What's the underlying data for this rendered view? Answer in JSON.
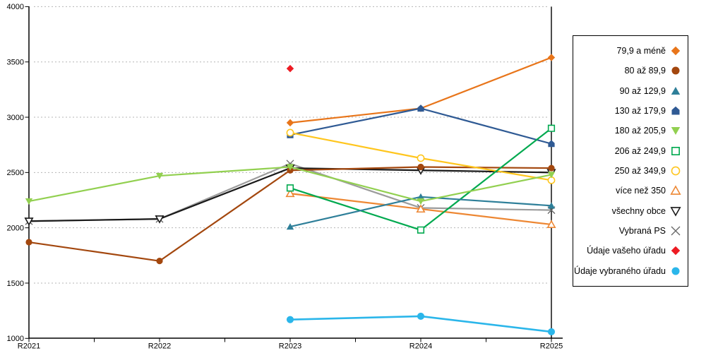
{
  "page": {
    "background": "#ffffff"
  },
  "chart_data": {
    "type": "line",
    "title": "",
    "x_categories": [
      "R2021",
      "R2022",
      "R2023",
      "R2024",
      "R2025"
    ],
    "y_axis": {
      "min": 1000,
      "max": 4000,
      "step": 500,
      "tick_labels": [
        "4000",
        "3500",
        "3000",
        "2500",
        "2000",
        "1500",
        "1000"
      ]
    },
    "x_tick_labels": [
      "R2021",
      "R2022",
      "R2023",
      "R2024",
      "R2025"
    ],
    "grid": {
      "horizontal": true,
      "style": "dashed",
      "color": "#b5b5b5"
    },
    "reference_line": {
      "axis": "x",
      "at": "R2025",
      "color": "#000000"
    },
    "legend_position": "right",
    "series": [
      {
        "name": "79,9 a méně",
        "marker": "diamond",
        "fill": "solid",
        "color": "#E8751A",
        "values": [
          null,
          null,
          2950,
          3080,
          3540
        ]
      },
      {
        "name": "80 až 89,9",
        "marker": "circle",
        "fill": "solid",
        "color": "#A3470E",
        "values": [
          1870,
          1700,
          2520,
          2550,
          2540
        ]
      },
      {
        "name": "90 až 129,9",
        "marker": "triangle-up",
        "fill": "solid",
        "color": "#2E7F99",
        "values": [
          null,
          null,
          2010,
          2280,
          2200
        ]
      },
      {
        "name": "130 až 179,9",
        "marker": "pentagon",
        "fill": "solid",
        "color": "#2F5A94",
        "values": [
          null,
          null,
          2840,
          3080,
          2760
        ]
      },
      {
        "name": "180 až 205,9",
        "marker": "triangle-down",
        "fill": "solid",
        "color": "#92D050",
        "values": [
          2240,
          2470,
          2550,
          2240,
          2480
        ]
      },
      {
        "name": "206 až 249,9",
        "marker": "square",
        "fill": "open",
        "color": "#00A94F",
        "values": [
          null,
          null,
          2360,
          1980,
          2900
        ]
      },
      {
        "name": "250 až 349,9",
        "marker": "circle",
        "fill": "open",
        "color": "#FFC61E",
        "values": [
          null,
          null,
          2860,
          2630,
          2430
        ]
      },
      {
        "name": "více než 350",
        "marker": "triangle-up",
        "fill": "open",
        "color": "#ED8733",
        "values": [
          null,
          null,
          2310,
          2170,
          2030
        ]
      },
      {
        "name": "všechny obce",
        "marker": "triangle-down",
        "fill": "open",
        "color": "#1A1A1A",
        "values": [
          2060,
          2080,
          2540,
          2520,
          2500
        ]
      },
      {
        "name": "Vybraná PS",
        "marker": "cross",
        "fill": "open",
        "color": "#9C9C9C",
        "marker_color": "#666666",
        "values": [
          2060,
          2080,
          2580,
          2180,
          2160
        ]
      },
      {
        "name": "Údaje vašeho úřadu",
        "marker": "diamond",
        "fill": "solid",
        "color": "#ED1B23",
        "line": false,
        "values": [
          null,
          null,
          3440,
          null,
          null
        ]
      },
      {
        "name": "Údaje vybraného úřadu",
        "marker": "circle",
        "fill": "solid",
        "color": "#2BB6EA",
        "values": [
          null,
          null,
          1170,
          1200,
          1060
        ]
      }
    ]
  }
}
